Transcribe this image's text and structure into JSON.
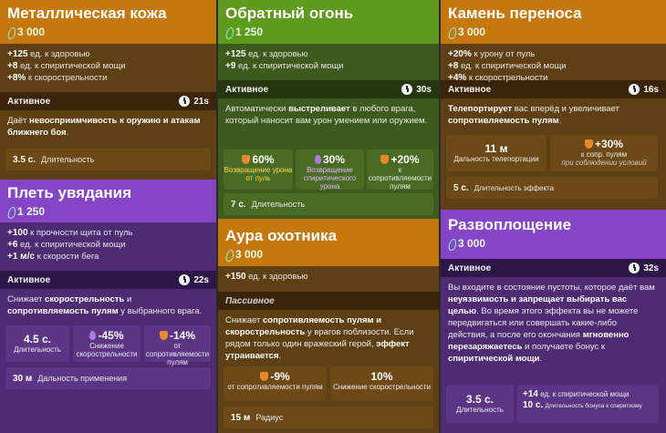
{
  "cards": {
    "metal_skin": {
      "title": "Металлическая кожа",
      "cost": "3 000",
      "stats": [
        {
          "value": "+125",
          "text": "ед. к здоровью"
        },
        {
          "value": "+8",
          "text": "ед. к спиритической мощи"
        },
        {
          "value": "+8%",
          "text": "к скорострельности"
        }
      ],
      "active_label": "Активное",
      "cooldown": "21s",
      "desc_1": "Даёт ",
      "desc_b1": "невосприимчивость к оружию и атакам ближнего боя",
      "desc_2": ".",
      "duration_value": "3.5 с.",
      "duration_label": "Длительность"
    },
    "withering_whip": {
      "title": "Плеть увядания",
      "cost": "1 250",
      "stats": [
        {
          "value": "+100",
          "text": "к прочности щита от пуль"
        },
        {
          "value": "+6",
          "text": "ед. к спиритической мощи"
        },
        {
          "value": "+1 м/с",
          "text": "к скорости бега"
        }
      ],
      "active_label": "Активное",
      "cooldown": "22s",
      "desc_1": "Снижает ",
      "desc_b1": "скорострельность",
      "desc_2": " и ",
      "desc_b2": "сопротивляемость пулям",
      "desc_3": " у выбранного врага.",
      "duration_value": "4.5 с.",
      "duration_label": "Длительность",
      "fire_rate_value": "-45%",
      "fire_rate_label": "Снижение скорострельности",
      "resist_value": "-14%",
      "resist_label": "от сопротивляемости пулям",
      "range_value": "30 м",
      "range_label": "Дальность применения"
    },
    "return_fire": {
      "title": "Обратный огонь",
      "cost": "1 250",
      "stats": [
        {
          "value": "+125",
          "text": "ед. к здоровью"
        },
        {
          "value": "+9",
          "text": "ед. к спиритической мощи"
        }
      ],
      "active_label": "Активное",
      "cooldown": "30s",
      "desc_1": "Автоматически ",
      "desc_b1": "выстреливает",
      "desc_2": " в любого врага, который наносит вам урон умением или оружием.",
      "box1_value": "60%",
      "box1_label": "Возвращение урона от пуль",
      "box2_value": "30%",
      "box2_label": "Возвращение спиритического урона",
      "box3_value": "+20%",
      "box3_label": "к сопротивляемости пулям",
      "duration_value": "7 с.",
      "duration_label": "Длительность"
    },
    "hunters_aura": {
      "title": "Аура охотника",
      "cost": "3 000",
      "stats": [
        {
          "value": "+150",
          "text": "ед. к здоровью"
        }
      ],
      "passive_label": "Пассивное",
      "desc_1": "Снижает ",
      "desc_b1": "сопротивляемость пулям и скорострельность",
      "desc_2": " у врагов поблизости. Если рядом только один вражеский герой, ",
      "desc_b2": "эффект утраивается",
      "desc_3": ".",
      "box1_value": "-9%",
      "box1_label": "от сопротивляемости пулям",
      "box2_value": "10%",
      "box2_label": "Снижение скорострельности",
      "radius_value": "15 м",
      "radius_label": "Радиус"
    },
    "warp_stone": {
      "title": "Камень переноса",
      "cost": "3 000",
      "stats": [
        {
          "value": "+20%",
          "text": "к урону от пуль"
        },
        {
          "value": "+8",
          "text": "ед. к спиритической мощи"
        },
        {
          "value": "+4%",
          "text": "к скорострельности"
        }
      ],
      "active_label": "Активное",
      "cooldown": "16s",
      "desc_b1": "Телепортирует",
      "desc_1": " вас вперёд и увеличивает ",
      "desc_b2": "сопротивляемость пулям",
      "desc_2": ".",
      "range_value": "11 м",
      "range_label": "Дальность телепортации",
      "resist_value": "+30%",
      "resist_label": "к сопр. пулям",
      "resist_note": "при соблюдении условий",
      "duration_value": "5 с.",
      "duration_label": "Длительность эффекта"
    },
    "ethereal_shift": {
      "title": "Развоплощение",
      "cost": "3 000",
      "active_label": "Активное",
      "cooldown": "32s",
      "desc_1": "Вы входите в состояние пустоты, которое даёт вам ",
      "desc_b1": "неуязвимость и запрещает выбирать вас целью",
      "desc_2": ". Во время этого эффекта вы не можете передвигаться или совершать какие-либо действия, а после его окончания ",
      "desc_b2": "мгновенно перезаряжаетесь",
      "desc_3": " и получаете бонус к ",
      "desc_b3": "спиритической мощи",
      "desc_4": ".",
      "duration_value": "3.5 с.",
      "duration_label": "Длительность",
      "bonus1_value": "+14",
      "bonus1_label": "ед. к спиритической мощи",
      "bonus2_value": "10 с.",
      "bonus2_label": "Длительность бонуса к спиритизму"
    }
  }
}
